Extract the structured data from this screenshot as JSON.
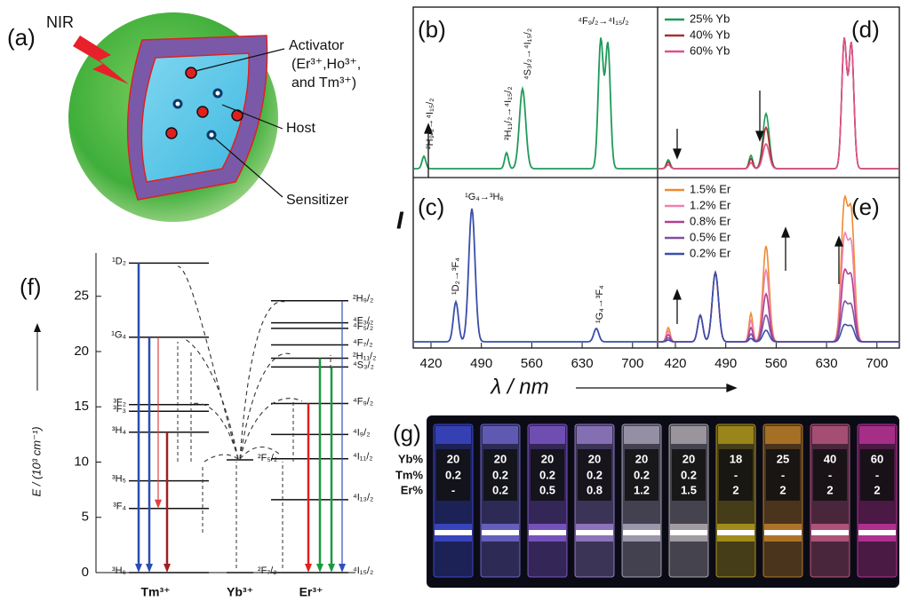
{
  "panels": {
    "a": {
      "label": "(a)",
      "nir": "NIR",
      "activator": [
        "Activator",
        "(Er³⁺,Ho³⁺,",
        "and Tm³⁺)"
      ],
      "host": "Host",
      "sensitizer": "Sensitizer"
    },
    "b": {
      "label": "(b)",
      "transitions": [
        "²H₉/₂→⁴I₁₅/₂",
        "²H₁₁/₂→⁴I₁₅/₂",
        "⁴S₃/₂→⁴I₁₅/₂",
        "⁴F₉/₂→⁴I₁₅/₂"
      ]
    },
    "c": {
      "label": "(c)",
      "transitions": [
        "¹D₂→³F₄",
        "¹G₄→³H₆",
        "¹G₄→³F₄"
      ]
    },
    "d": {
      "label": "(d)",
      "legend": [
        "25% Yb",
        "40% Yb",
        "60% Yb"
      ]
    },
    "e": {
      "label": "(e)",
      "legend": [
        "1.5% Er",
        "1.2% Er",
        "0.8% Er",
        "0.5% Er",
        "0.2% Er"
      ]
    },
    "spectra_axes": {
      "x_ticks": [
        "420",
        "490",
        "560",
        "630",
        "700"
      ],
      "x_label": "λ / nm",
      "y_label": "I"
    },
    "f": {
      "label": "(f)",
      "y_ticks": [
        "0",
        "5",
        "10",
        "15",
        "20",
        "25"
      ],
      "y_label": "E / (10³ cm⁻¹)",
      "ions": [
        "Tm³⁺",
        "Yb³⁺",
        "Er³⁺"
      ],
      "tm_levels": [
        "¹D₂",
        "¹G₄",
        "³F₂",
        "³F₃",
        "³H₄",
        "³H₅",
        "³F₄",
        "³H₆"
      ],
      "yb_levels": [
        "²F₅/₂",
        "²F₇/₂"
      ],
      "er_levels": [
        "²H₉/₂",
        "⁴F₃/₂",
        "⁴F₅/₂",
        "⁴F₇/₂",
        "²H₁₁/₂",
        "⁴S₃/₂",
        "⁴F₉/₂",
        "⁴I₉/₂",
        "⁴I₁₁/₂",
        "⁴I₁₃/₂",
        "⁴I₁₅/₂"
      ]
    },
    "g": {
      "label": "(g)",
      "row_labels": [
        "Yb%",
        "Tm%",
        "Er%"
      ],
      "columns": [
        [
          "20",
          "0.2",
          "-"
        ],
        [
          "20",
          "0.2",
          "0.2"
        ],
        [
          "20",
          "0.2",
          "0.5"
        ],
        [
          "20",
          "0.2",
          "0.8"
        ],
        [
          "20",
          "0.2",
          "1.2"
        ],
        [
          "20",
          "0.2",
          "1.5"
        ],
        [
          "18",
          "-",
          "2"
        ],
        [
          "25",
          "-",
          "2"
        ],
        [
          "40",
          "-",
          "2"
        ],
        [
          "60",
          "-",
          "2"
        ]
      ]
    }
  }
}
